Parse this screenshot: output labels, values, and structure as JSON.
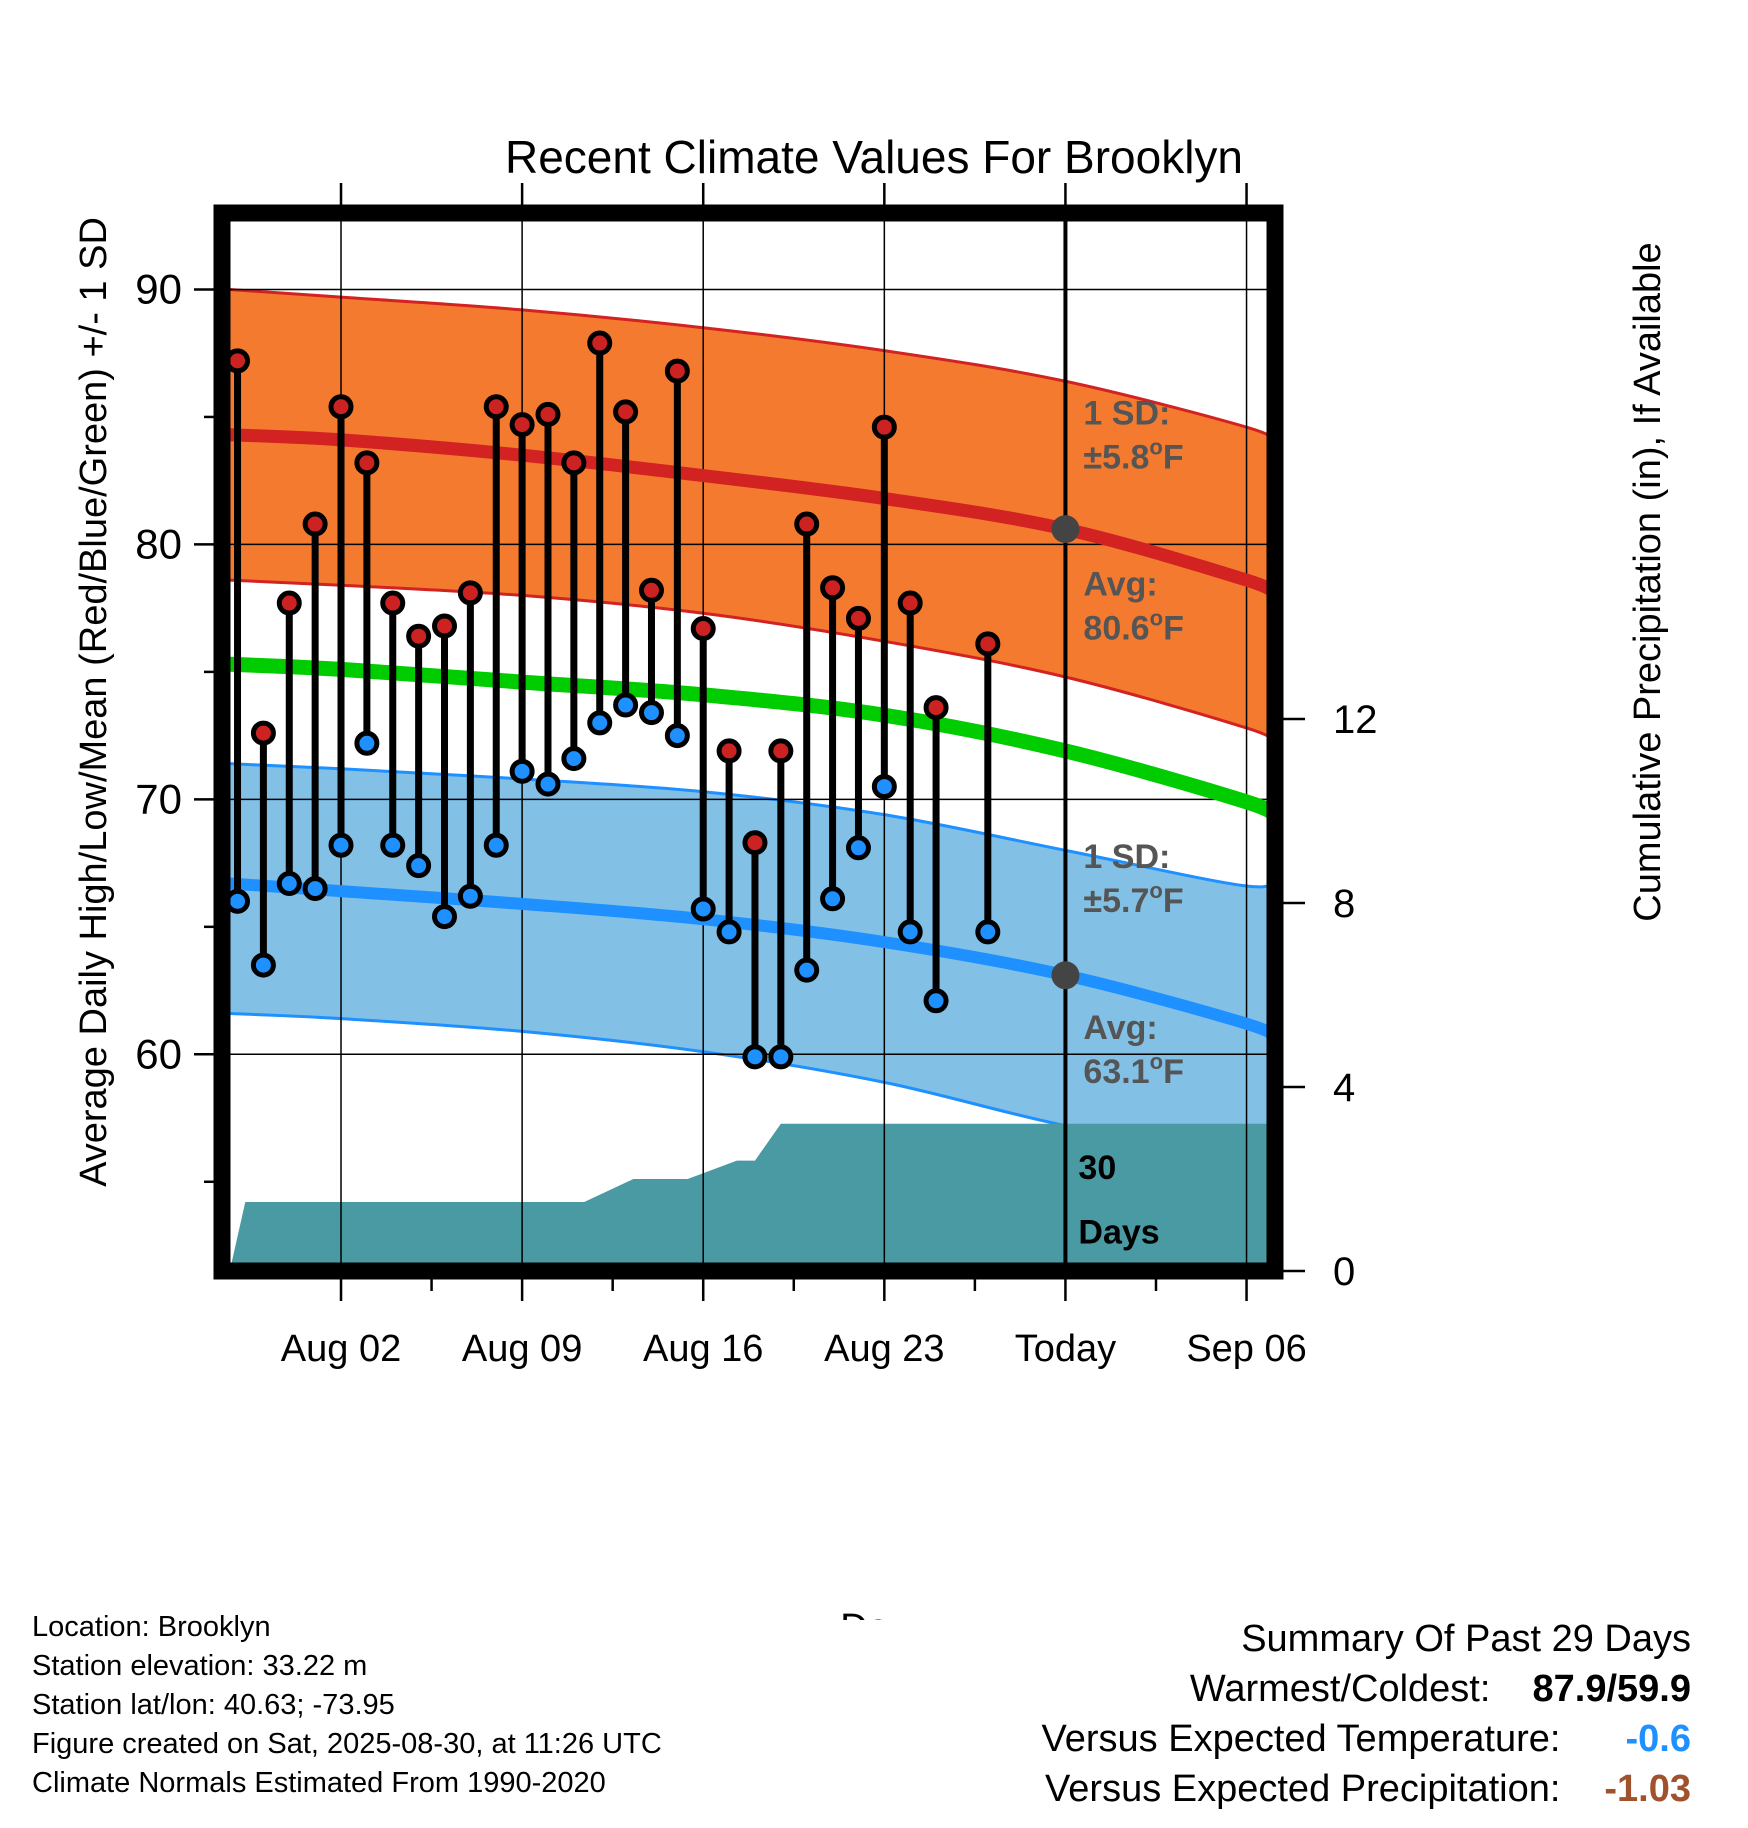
{
  "chart_data": {
    "type": "line",
    "title": "Recent Climate Values For Brooklyn",
    "xlabel": "Day",
    "ylabel": "Average Daily High/Low/Mean (Red/Blue/Green) +/- 1 SD",
    "y2label": "Cumulative Precipitation (in), If Available",
    "ylim": [
      51.5,
      93
    ],
    "y2lim": [
      0,
      23
    ],
    "xlim": [
      -2.6,
      38.1
    ],
    "y_ticks": [
      "60",
      "70",
      "80",
      "90"
    ],
    "y_tick_values": [
      60,
      70,
      80,
      90
    ],
    "y2_ticks": [
      "0",
      "4",
      "8",
      "12"
    ],
    "y2_tick_values": [
      0,
      4,
      8,
      12
    ],
    "x_ticks": [
      {
        "day": 2,
        "label": "Aug 02"
      },
      {
        "day": 9,
        "label": "Aug 09"
      },
      {
        "day": 16,
        "label": "Aug 16"
      },
      {
        "day": 23,
        "label": "Aug 23"
      },
      {
        "day": 30,
        "label": "Today"
      },
      {
        "day": 37,
        "label": "Sep 06"
      }
    ],
    "grid": true,
    "today_day": 30,
    "normals": {
      "days": [
        -2.3,
        2,
        9,
        16,
        23,
        30,
        37,
        38.1
      ],
      "avg_high": [
        84.3,
        84.1,
        83.5,
        82.7,
        81.8,
        80.6,
        78.6,
        78.0
      ],
      "high_upper": [
        90.0,
        89.7,
        89.2,
        88.5,
        87.6,
        86.4,
        84.6,
        84.0
      ],
      "high_lower": [
        78.6,
        78.4,
        78.0,
        77.3,
        76.2,
        74.8,
        72.8,
        72.2
      ],
      "mean": [
        75.3,
        75.1,
        74.6,
        74.1,
        73.3,
        71.9,
        69.9,
        69.3
      ],
      "avg_low": [
        66.7,
        66.4,
        65.9,
        65.3,
        64.4,
        63.1,
        61.2,
        60.6
      ],
      "low_upper": [
        71.4,
        71.2,
        70.8,
        70.3,
        69.4,
        68.0,
        66.6,
        67.0
      ],
      "low_lower": [
        61.6,
        61.4,
        60.9,
        60.1,
        58.9,
        57.2,
        56.0,
        55.5
      ]
    },
    "series": [
      {
        "name": "High",
        "days": [
          -2,
          -1,
          0,
          1,
          2,
          3,
          4,
          5,
          6,
          7,
          8,
          9,
          10,
          11,
          12,
          13,
          14,
          15,
          16,
          17,
          18,
          19,
          20,
          21,
          22,
          23,
          24,
          25,
          26,
          27,
          28
        ],
        "values": [
          87.2,
          72.6,
          77.7,
          80.8,
          85.4,
          83.2,
          77.7,
          76.4,
          76.8,
          78.1,
          85.4,
          84.7,
          85.1,
          83.2,
          87.9,
          85.2,
          78.2,
          86.8,
          76.7,
          71.9,
          68.3,
          71.9,
          80.8,
          78.3,
          77.1,
          84.6,
          77.7,
          73.6,
          null,
          76.1,
          null
        ],
        "color": "#cc2222"
      },
      {
        "name": "Low",
        "days": [
          -2,
          -1,
          0,
          1,
          2,
          3,
          4,
          5,
          6,
          7,
          8,
          9,
          10,
          11,
          12,
          13,
          14,
          15,
          16,
          17,
          18,
          19,
          20,
          21,
          22,
          23,
          24,
          25,
          26,
          27,
          28
        ],
        "values": [
          66.0,
          63.5,
          66.7,
          66.5,
          68.2,
          72.2,
          68.2,
          67.4,
          65.4,
          66.2,
          68.2,
          71.1,
          70.6,
          71.6,
          73.0,
          73.7,
          73.4,
          72.5,
          65.7,
          64.8,
          59.9,
          59.9,
          63.3,
          66.1,
          68.1,
          70.5,
          64.8,
          62.1,
          null,
          64.8,
          null
        ],
        "color": "#1e90ff"
      }
    ],
    "precip": {
      "days": [
        -2.3,
        -1.7,
        5,
        10.5,
        11,
        11.4,
        13.3,
        14.6,
        15,
        15.4,
        17.3,
        18,
        19,
        25,
        30,
        38.1
      ],
      "values": [
        0.0,
        1.5,
        1.5,
        1.5,
        1.5,
        1.5,
        2.0,
        2.0,
        2.0,
        2.0,
        2.4,
        2.4,
        3.2,
        3.2,
        3.2,
        3.2
      ],
      "color": "#4a9aa3"
    },
    "annotations": {
      "high_sd": [
        "1 SD:",
        "±5.8",
        "F"
      ],
      "high_avg": [
        "Avg:",
        "80.6",
        "F"
      ],
      "low_sd": [
        "1 SD:",
        "±5.7",
        "F"
      ],
      "low_avg": [
        "Avg:",
        "63.1",
        "F"
      ],
      "days_window": [
        "30",
        "Days"
      ],
      "degree_sup": "o"
    },
    "colors": {
      "high_band": "#f47a30",
      "high_line": "#d22222",
      "low_band": "#82c0e6",
      "low_line": "#1e90ff",
      "mean_line": "#00cc00",
      "annotation": "#555555",
      "marker_today": "#444444"
    }
  },
  "info": {
    "location": "Location: Brooklyn",
    "elevation": "Station elevation: 33.22 m",
    "latlon": "Station lat/lon: 40.63; -73.95",
    "created": "Figure created on Sat, 2025-08-30, at 11:26 UTC",
    "normals": "Climate Normals Estimated From 1990-2020"
  },
  "summary": {
    "heading": "Summary Of Past 29 Days",
    "warmest_label": "Warmest/Coldest:",
    "warmest_value": "87.9/59.9",
    "temp_label": "Versus Expected Temperature:",
    "temp_value": "-0.6",
    "temp_color": "#1e90ff",
    "precip_label": "Versus Expected Precipitation:",
    "precip_value": "-1.03",
    "precip_color": "#a0522d"
  }
}
